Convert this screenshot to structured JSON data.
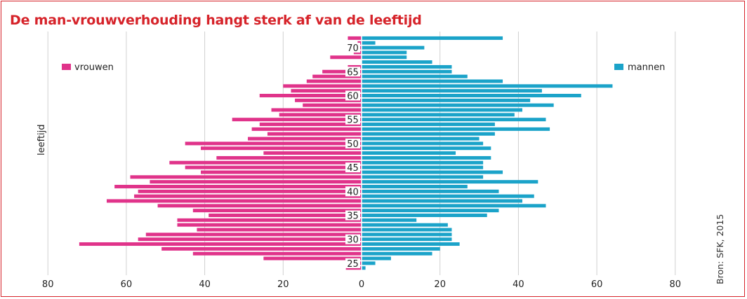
{
  "chart_data": {
    "type": "bar",
    "orientation": "horizontal",
    "title": "De man-vrouwverhouding hangt sterk af van de leeftijd",
    "ylabel": "leeftijd",
    "source": "Bron: SFK, 2015",
    "x_ticks": [
      "80",
      "60",
      "40",
      "20",
      "0",
      "20",
      "40",
      "60",
      "80"
    ],
    "xlim": [
      -80,
      80
    ],
    "age_labels": [
      "70",
      "65",
      "60",
      "55",
      "50",
      "45",
      "40",
      "35",
      "30",
      "25"
    ],
    "ages": [
      72,
      71,
      70,
      69,
      68,
      67,
      66,
      65,
      64,
      63,
      62,
      61,
      60,
      59,
      58,
      57,
      56,
      55,
      54,
      53,
      52,
      51,
      50,
      49,
      48,
      47,
      46,
      45,
      44,
      43,
      42,
      41,
      40,
      39,
      38,
      37,
      36,
      35,
      34,
      33,
      32,
      31,
      30,
      29,
      28,
      27,
      26,
      25,
      24
    ],
    "series": [
      {
        "name": "vrouwen",
        "color": "#e0338a",
        "values": [
          3.5,
          1,
          2,
          2,
          8,
          0,
          3.5,
          10,
          12.5,
          14,
          20,
          18,
          26,
          17,
          15,
          23,
          21,
          33,
          26,
          28,
          24,
          29,
          45,
          41,
          25,
          37,
          49,
          45,
          41,
          59,
          54,
          63,
          57,
          58,
          65,
          52,
          43,
          39,
          47,
          47,
          42,
          55,
          57,
          72,
          51,
          43,
          25,
          3.5,
          4
        ]
      },
      {
        "name": "mannen",
        "color": "#1ba3c9",
        "values": [
          36,
          3.5,
          16,
          11.5,
          11.5,
          18,
          23,
          23,
          27,
          36,
          64,
          46,
          56,
          43,
          49,
          41,
          39,
          47,
          34,
          48,
          34,
          30,
          31,
          33,
          24,
          33,
          31,
          31,
          36,
          31,
          45,
          27,
          35,
          44,
          41,
          47,
          35,
          32,
          14,
          22,
          23,
          23,
          23,
          25,
          20,
          18,
          7.5,
          3.5,
          1
        ]
      }
    ],
    "legend": {
      "left": "vrouwen",
      "right": "mannen"
    }
  }
}
